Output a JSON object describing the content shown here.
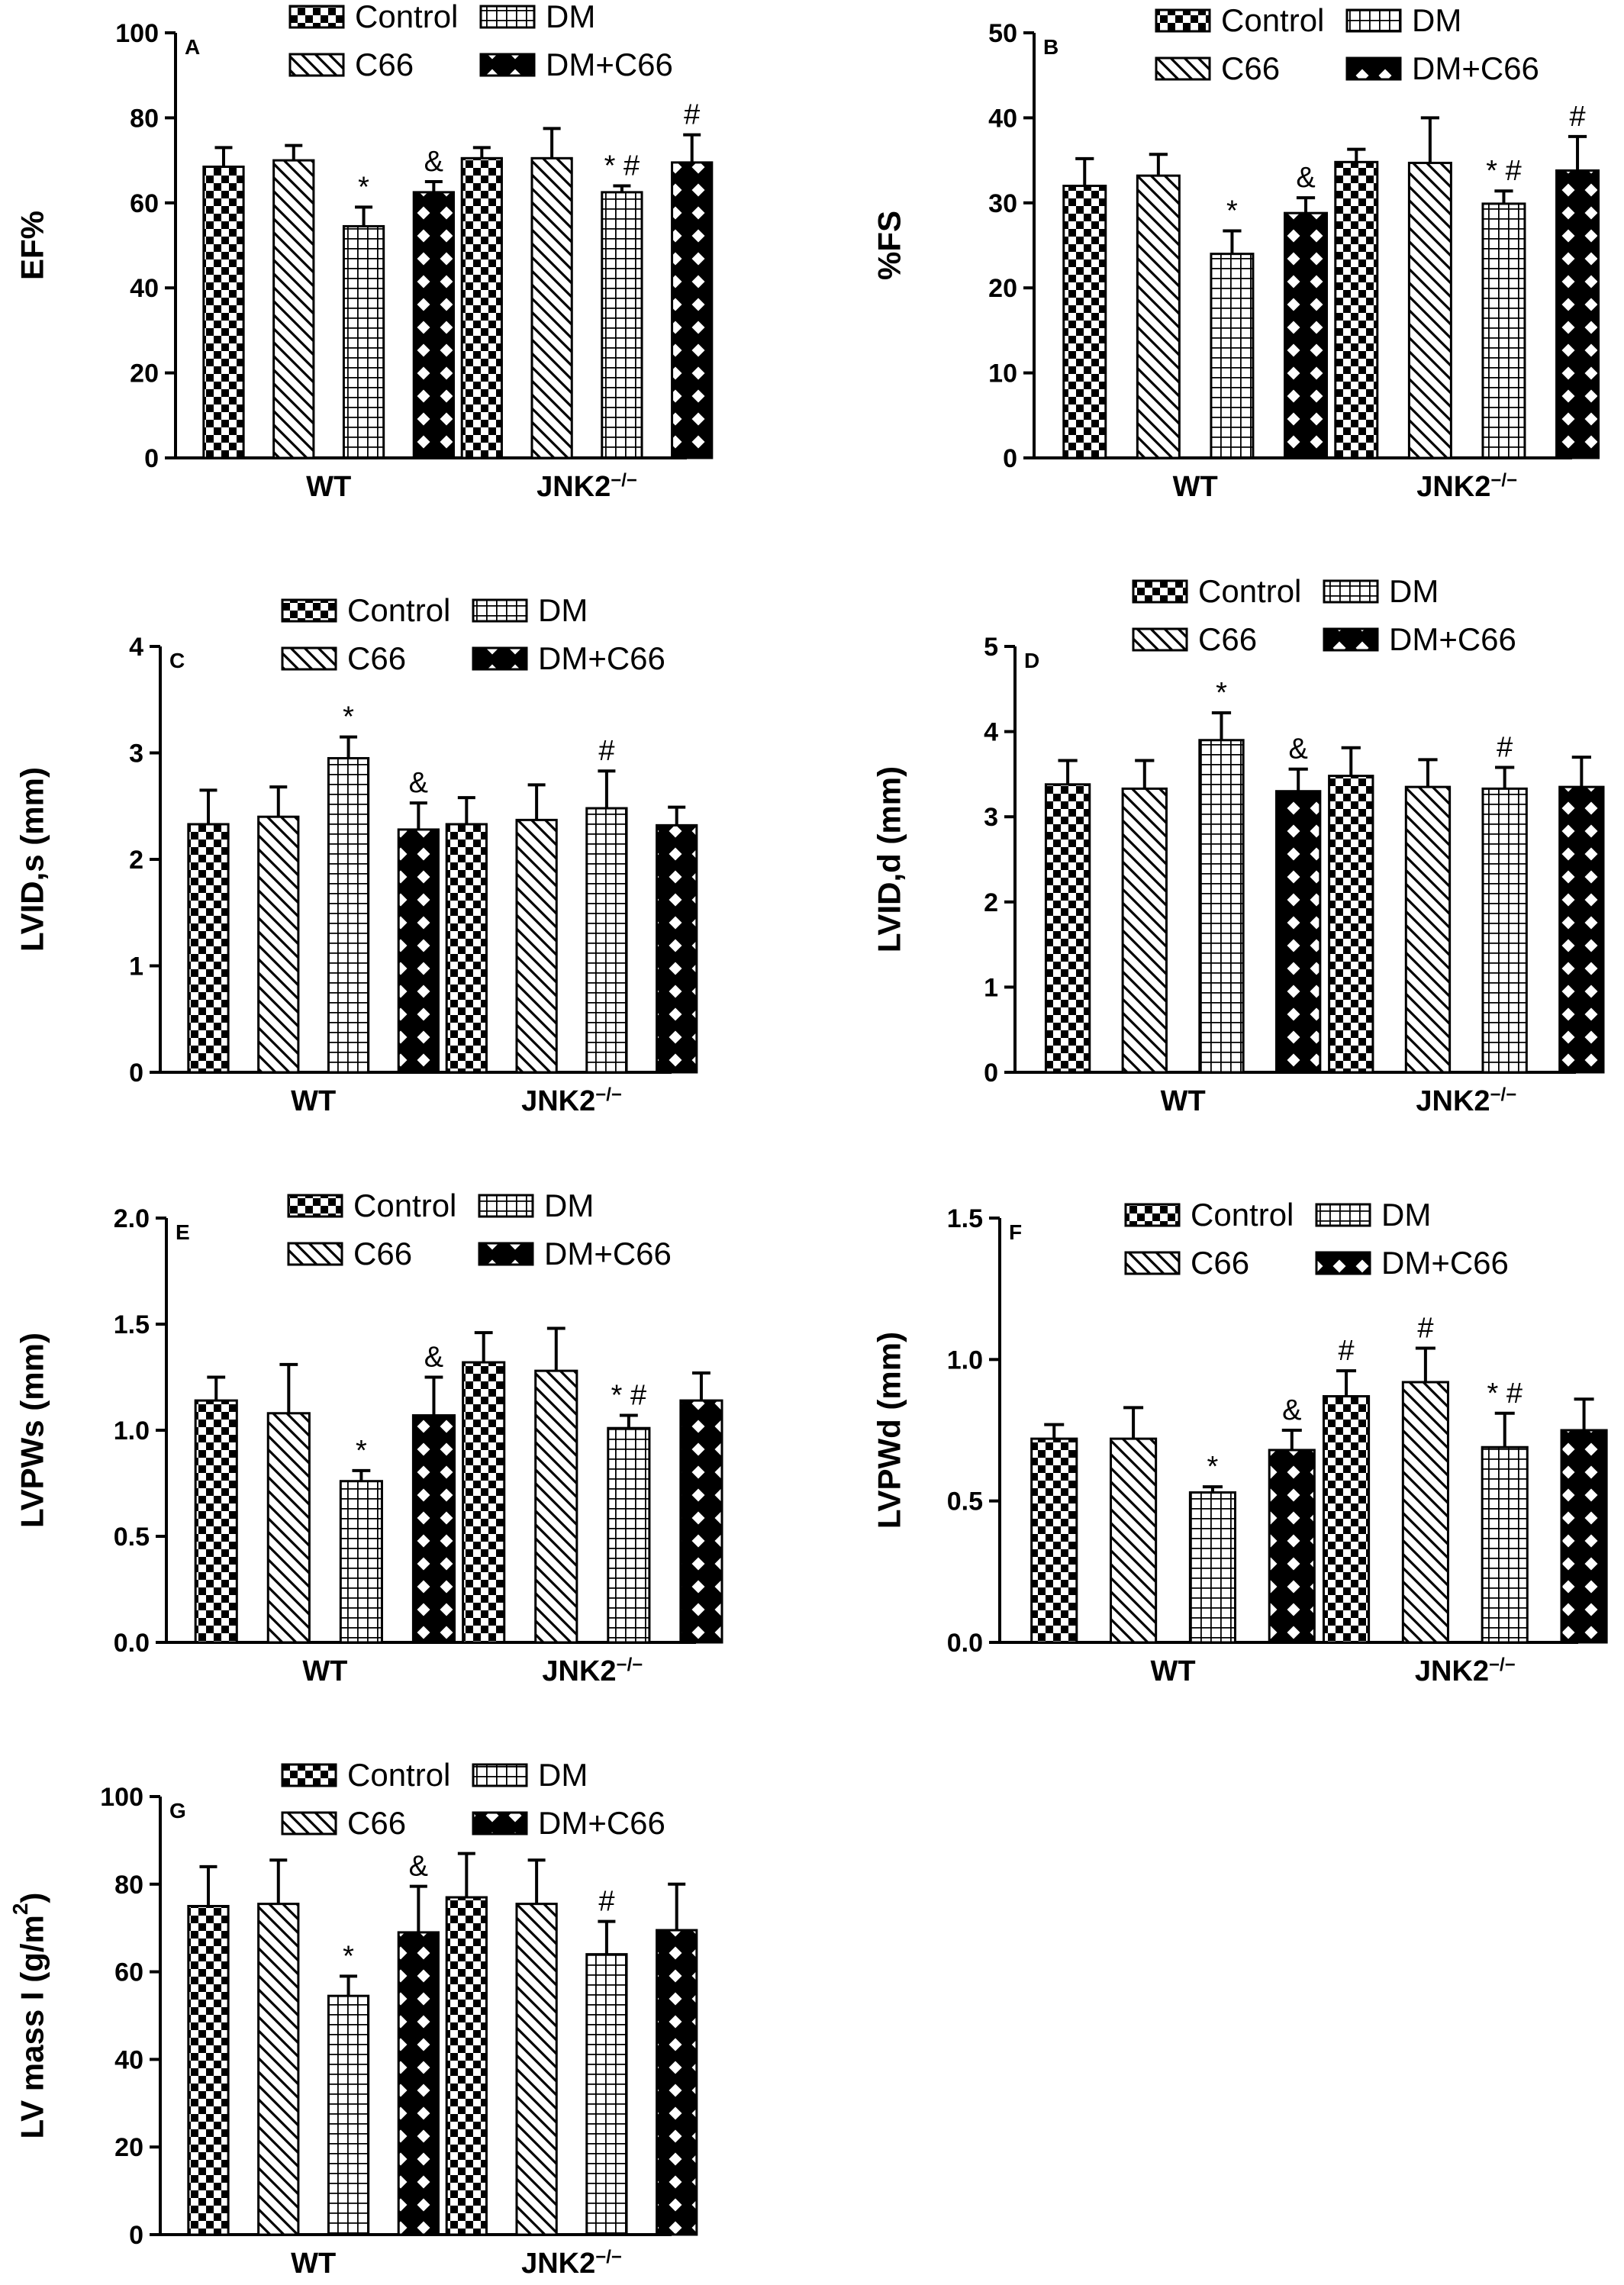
{
  "legend": {
    "items": [
      {
        "key": "control",
        "label": "Control",
        "pattern": "checker"
      },
      {
        "key": "c66",
        "label": "C66",
        "pattern": "diag"
      },
      {
        "key": "dm",
        "label": "DM",
        "pattern": "grid"
      },
      {
        "key": "dmc66",
        "label": "DM+C66",
        "pattern": "xhatch"
      }
    ]
  },
  "colors": {
    "bar_fill": "#000000",
    "background": "#ffffff"
  },
  "chart_data": [
    {
      "type": "bar",
      "panel_letter": "A",
      "ylabel": "EF%",
      "ylim": [
        0,
        100
      ],
      "yticks": [
        "0",
        "20",
        "40",
        "60",
        "80",
        "100"
      ],
      "ytick_values": [
        0,
        20,
        40,
        60,
        80,
        100
      ],
      "categories": [
        {
          "label": "WT",
          "sup": ""
        },
        {
          "label": "JNK2",
          "sup": "−/−"
        }
      ],
      "series": [
        {
          "key": "control",
          "values": [
            68.5,
            70.5
          ],
          "errors": [
            4.5,
            2.5
          ],
          "annotations": [
            "",
            ""
          ]
        },
        {
          "key": "c66",
          "values": [
            70,
            70.5
          ],
          "errors": [
            3.5,
            7
          ],
          "annotations": [
            "",
            ""
          ]
        },
        {
          "key": "dm",
          "values": [
            54.5,
            62.5
          ],
          "errors": [
            4.5,
            1.5
          ],
          "annotations": [
            "*",
            "* #"
          ]
        },
        {
          "key": "dmc66",
          "values": [
            62.5,
            69.5
          ],
          "errors": [
            2.5,
            6.5
          ],
          "annotations": [
            "&",
            "#"
          ]
        }
      ]
    },
    {
      "type": "bar",
      "panel_letter": "B",
      "ylabel": "%FS",
      "ylim": [
        0,
        50
      ],
      "yticks": [
        "0",
        "10",
        "20",
        "30",
        "40",
        "50"
      ],
      "ytick_values": [
        0,
        10,
        20,
        30,
        40,
        50
      ],
      "categories": [
        {
          "label": "WT",
          "sup": ""
        },
        {
          "label": "JNK2",
          "sup": "−/−"
        }
      ],
      "series": [
        {
          "key": "control",
          "values": [
            32,
            34.8
          ],
          "errors": [
            3.2,
            1.5
          ],
          "annotations": [
            "",
            ""
          ]
        },
        {
          "key": "c66",
          "values": [
            33.2,
            34.7
          ],
          "errors": [
            2.5,
            5.3
          ],
          "annotations": [
            "",
            ""
          ]
        },
        {
          "key": "dm",
          "values": [
            24,
            29.9
          ],
          "errors": [
            2.7,
            1.5
          ],
          "annotations": [
            "*",
            "* #"
          ]
        },
        {
          "key": "dmc66",
          "values": [
            28.8,
            33.8
          ],
          "errors": [
            1.8,
            4
          ],
          "annotations": [
            "&",
            "#"
          ]
        }
      ]
    },
    {
      "type": "bar",
      "panel_letter": "C",
      "ylabel": "LVID,s (mm)",
      "ylim": [
        0,
        4
      ],
      "yticks": [
        "0",
        "1",
        "2",
        "3",
        "4"
      ],
      "ytick_values": [
        0,
        1,
        2,
        3,
        4
      ],
      "categories": [
        {
          "label": "WT",
          "sup": ""
        },
        {
          "label": "JNK2",
          "sup": "−/−"
        }
      ],
      "series": [
        {
          "key": "control",
          "values": [
            2.33,
            2.33
          ],
          "errors": [
            0.32,
            0.25
          ],
          "annotations": [
            "",
            ""
          ]
        },
        {
          "key": "c66",
          "values": [
            2.4,
            2.37
          ],
          "errors": [
            0.28,
            0.33
          ],
          "annotations": [
            "",
            ""
          ]
        },
        {
          "key": "dm",
          "values": [
            2.95,
            2.48
          ],
          "errors": [
            0.2,
            0.35
          ],
          "annotations": [
            "*",
            "#"
          ]
        },
        {
          "key": "dmc66",
          "values": [
            2.28,
            2.32
          ],
          "errors": [
            0.25,
            0.17
          ],
          "annotations": [
            "&",
            ""
          ]
        }
      ]
    },
    {
      "type": "bar",
      "panel_letter": "D",
      "ylabel": "LVID,d (mm)",
      "ylim": [
        0,
        5
      ],
      "yticks": [
        "0",
        "1",
        "2",
        "3",
        "4",
        "5"
      ],
      "ytick_values": [
        0,
        1,
        2,
        3,
        4,
        5
      ],
      "categories": [
        {
          "label": "WT",
          "sup": ""
        },
        {
          "label": "JNK2",
          "sup": "−/−"
        }
      ],
      "series": [
        {
          "key": "control",
          "values": [
            3.38,
            3.48
          ],
          "errors": [
            0.28,
            0.33
          ],
          "annotations": [
            "",
            ""
          ]
        },
        {
          "key": "c66",
          "values": [
            3.33,
            3.35
          ],
          "errors": [
            0.33,
            0.32
          ],
          "annotations": [
            "",
            ""
          ]
        },
        {
          "key": "dm",
          "values": [
            3.9,
            3.33
          ],
          "errors": [
            0.32,
            0.25
          ],
          "annotations": [
            "*",
            "#"
          ]
        },
        {
          "key": "dmc66",
          "values": [
            3.3,
            3.35
          ],
          "errors": [
            0.26,
            0.35
          ],
          "annotations": [
            "&",
            ""
          ]
        }
      ]
    },
    {
      "type": "bar",
      "panel_letter": "E",
      "ylabel": "LVPWs  (mm)",
      "ylim": [
        0,
        2
      ],
      "yticks": [
        "0.0",
        "0.5",
        "1.0",
        "1.5",
        "2.0"
      ],
      "ytick_values": [
        0,
        0.5,
        1,
        1.5,
        2
      ],
      "categories": [
        {
          "label": "WT",
          "sup": ""
        },
        {
          "label": "JNK2",
          "sup": "−/−"
        }
      ],
      "series": [
        {
          "key": "control",
          "values": [
            1.14,
            1.32
          ],
          "errors": [
            0.11,
            0.14
          ],
          "annotations": [
            "",
            ""
          ]
        },
        {
          "key": "c66",
          "values": [
            1.08,
            1.28
          ],
          "errors": [
            0.23,
            0.2
          ],
          "annotations": [
            "",
            ""
          ]
        },
        {
          "key": "dm",
          "values": [
            0.76,
            1.01
          ],
          "errors": [
            0.05,
            0.06
          ],
          "annotations": [
            "*",
            "* #"
          ]
        },
        {
          "key": "dmc66",
          "values": [
            1.07,
            1.14
          ],
          "errors": [
            0.18,
            0.13
          ],
          "annotations": [
            "&",
            ""
          ]
        }
      ]
    },
    {
      "type": "bar",
      "panel_letter": "F",
      "ylabel": "LVPWd  (mm)",
      "ylim": [
        0,
        1.5
      ],
      "yticks": [
        "0.0",
        "0.5",
        "1.0",
        "1.5"
      ],
      "ytick_values": [
        0,
        0.5,
        1,
        1.5
      ],
      "categories": [
        {
          "label": "WT",
          "sup": ""
        },
        {
          "label": "JNK2",
          "sup": "−/−"
        }
      ],
      "series": [
        {
          "key": "control",
          "values": [
            0.72,
            0.87
          ],
          "errors": [
            0.05,
            0.09
          ],
          "annotations": [
            "",
            "#"
          ]
        },
        {
          "key": "c66",
          "values": [
            0.72,
            0.92
          ],
          "errors": [
            0.11,
            0.12
          ],
          "annotations": [
            "",
            "#"
          ]
        },
        {
          "key": "dm",
          "values": [
            0.53,
            0.69
          ],
          "errors": [
            0.02,
            0.12
          ],
          "annotations": [
            "*",
            "* #"
          ]
        },
        {
          "key": "dmc66",
          "values": [
            0.68,
            0.75
          ],
          "errors": [
            0.07,
            0.11
          ],
          "annotations": [
            "&",
            ""
          ]
        }
      ]
    },
    {
      "type": "bar",
      "panel_letter": "G",
      "ylabel": "LV mass I (g/m",
      "ylabel_sup": "2",
      "ylabel_end": ")",
      "ylim": [
        0,
        100
      ],
      "yticks": [
        "0",
        "20",
        "40",
        "60",
        "80",
        "100"
      ],
      "ytick_values": [
        0,
        20,
        40,
        60,
        80,
        100
      ],
      "categories": [
        {
          "label": "WT",
          "sup": ""
        },
        {
          "label": "JNK2",
          "sup": "−/−"
        }
      ],
      "series": [
        {
          "key": "control",
          "values": [
            75,
            77
          ],
          "errors": [
            9,
            10
          ],
          "annotations": [
            "",
            ""
          ]
        },
        {
          "key": "c66",
          "values": [
            75.5,
            75.5
          ],
          "errors": [
            10,
            10
          ],
          "annotations": [
            "",
            ""
          ]
        },
        {
          "key": "dm",
          "values": [
            54.5,
            64
          ],
          "errors": [
            4.5,
            7.5
          ],
          "annotations": [
            "*",
            "#"
          ]
        },
        {
          "key": "dmc66",
          "values": [
            69,
            69.5
          ],
          "errors": [
            10.5,
            10.5
          ],
          "annotations": [
            "&",
            ""
          ]
        }
      ]
    }
  ]
}
